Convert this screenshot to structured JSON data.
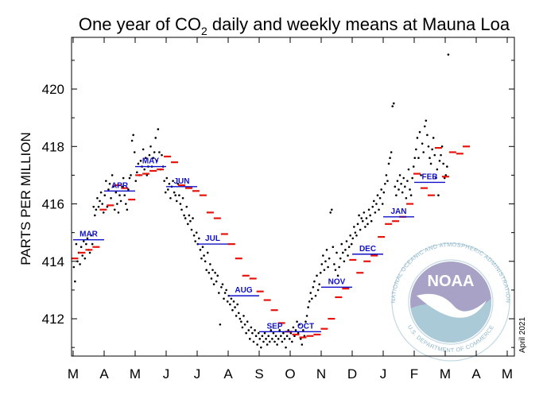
{
  "chart_data": {
    "type": "scatter",
    "title_prefix": "One year of CO",
    "title_subscript": "2",
    "title_suffix": " daily and weekly means at Mauna Loa",
    "xlabel": "",
    "ylabel": "PARTS PER MILLION",
    "ylim": [
      410.7,
      421.8
    ],
    "yticks": [
      412,
      414,
      416,
      418,
      420
    ],
    "xticks": [
      "M",
      "A",
      "M",
      "J",
      "J",
      "A",
      "S",
      "O",
      "N",
      "D",
      "J",
      "F",
      "M",
      "A",
      "M"
    ],
    "date_note": "April 2021",
    "grid": false,
    "monthly_means": [
      {
        "label": "MAR",
        "value": 414.75
      },
      {
        "label": "APR",
        "value": 416.45
      },
      {
        "label": "MAY",
        "value": 417.3
      },
      {
        "label": "JUN",
        "value": 416.6
      },
      {
        "label": "JUL",
        "value": 414.6
      },
      {
        "label": "AUG",
        "value": 412.8
      },
      {
        "label": "SEP",
        "value": 411.55
      },
      {
        "label": "OCT",
        "value": 411.55
      },
      {
        "label": "NOV",
        "value": 413.1
      },
      {
        "label": "DEC",
        "value": 414.25
      },
      {
        "label": "JAN",
        "value": 415.55
      },
      {
        "label": "FEB",
        "value": 416.75
      }
    ],
    "weekly_means_monthly_x": [
      0.05,
      0.28,
      0.51,
      0.74,
      0.97,
      1.2,
      1.43,
      1.66,
      1.89,
      2.12,
      2.35,
      2.58,
      2.81,
      3.04,
      3.27,
      3.5,
      3.73,
      3.96,
      4.19,
      4.42,
      4.65,
      4.88,
      5.11,
      5.34,
      5.57,
      5.8,
      6.03,
      6.26,
      6.49,
      6.72,
      6.95,
      7.18,
      7.41,
      7.64,
      7.87,
      8.1,
      8.33,
      8.56,
      8.79,
      9.02,
      9.25,
      9.48,
      9.71,
      9.94,
      10.17,
      10.4,
      10.63,
      10.86,
      11.09,
      11.32,
      11.55,
      11.78,
      12.01,
      12.24,
      12.47
    ],
    "weekly_means": [
      414.1,
      414.3,
      414.4,
      414.5,
      415.8,
      415.95,
      416.65,
      416.55,
      416.15,
      417.0,
      417.05,
      417.15,
      417.2,
      417.65,
      417.45,
      416.65,
      416.55,
      416.45,
      416.3,
      415.7,
      415.5,
      414.95,
      414.6,
      414.1,
      413.5,
      413.4,
      412.95,
      412.65,
      412.3,
      411.85,
      411.55,
      411.45,
      411.35,
      411.4,
      411.45,
      411.65,
      412.0,
      412.75,
      413.05,
      414.05,
      413.6,
      414.0,
      414.2,
      414.85,
      415.3,
      415.4,
      415.55,
      416.0,
      417.05,
      416.55,
      416.3,
      417.95,
      416.95,
      417.8,
      417.75
    ],
    "weekly_means_tail_x": [
      12.68
    ],
    "weekly_means_tail": [
      418.0
    ],
    "daily_means_monthly_x": [
      0.02,
      0.06,
      0.1,
      0.14,
      0.18,
      0.22,
      0.26,
      0.3,
      0.34,
      0.38,
      0.42,
      0.46,
      0.5,
      0.54,
      0.58,
      0.62,
      0.66,
      0.7,
      0.74,
      0.78,
      0.82,
      0.86,
      0.9,
      0.94,
      0.98,
      1.02,
      1.06,
      1.1,
      1.14,
      1.18,
      1.22,
      1.26,
      1.3,
      1.34,
      1.38,
      1.42,
      1.46,
      1.5,
      1.54,
      1.58,
      1.62,
      1.66,
      1.7,
      1.74,
      1.78,
      1.82,
      1.86,
      1.9,
      1.94,
      1.98,
      2.02,
      2.06,
      2.1,
      2.14,
      2.18,
      2.22,
      2.26,
      2.3,
      2.34,
      2.38,
      2.42,
      2.46,
      2.5,
      2.54,
      2.58,
      2.62,
      2.66,
      2.7,
      2.74,
      2.78,
      2.82,
      2.86,
      2.9,
      2.94,
      2.98,
      3.02,
      3.06,
      3.1,
      3.14,
      3.18,
      3.22,
      3.26,
      3.3,
      3.34,
      3.38,
      3.42,
      3.46,
      3.5,
      3.54,
      3.58,
      3.62,
      3.66,
      3.7,
      3.74,
      3.78,
      3.82,
      3.86,
      3.9,
      3.94,
      3.98,
      4.02,
      4.06,
      4.1,
      4.14,
      4.18,
      4.22,
      4.26,
      4.3,
      4.34,
      4.38,
      4.42,
      4.46,
      4.5,
      4.54,
      4.58,
      4.62,
      4.66,
      4.7,
      4.74,
      4.78,
      4.82,
      4.86,
      4.9,
      4.94,
      4.98,
      5.02,
      5.06,
      5.1,
      5.14,
      5.18,
      5.22,
      5.26,
      5.3,
      5.34,
      5.38,
      5.42,
      5.46,
      5.5,
      5.54,
      5.58,
      5.62,
      5.66,
      5.7,
      5.74,
      5.78,
      5.82,
      5.86,
      5.9,
      5.94,
      5.98,
      6.02,
      6.06,
      6.1,
      6.14,
      6.18,
      6.22,
      6.26,
      6.3,
      6.34,
      6.38,
      6.42,
      6.46,
      6.5,
      6.54,
      6.58,
      6.62,
      6.66,
      6.7,
      6.74,
      6.78,
      6.82,
      6.86,
      6.9,
      6.94,
      6.98,
      7.02,
      7.06,
      7.1,
      7.14,
      7.18,
      7.22,
      7.26,
      7.3,
      7.34,
      7.38,
      7.42,
      7.46,
      7.5,
      7.54,
      7.58,
      7.62,
      7.66,
      7.7,
      7.74,
      7.78,
      7.82,
      7.86,
      7.9,
      7.94,
      7.98,
      8.02,
      8.06,
      8.1,
      8.14,
      8.18,
      8.22,
      8.26,
      8.3,
      8.34,
      8.38,
      8.42,
      8.46,
      8.5,
      8.54,
      8.58,
      8.62,
      8.66,
      8.7,
      8.74,
      8.78,
      8.82,
      8.86,
      8.9,
      8.94,
      8.98,
      9.02,
      9.06,
      9.1,
      9.14,
      9.18,
      9.22,
      9.26,
      9.3,
      9.34,
      9.38,
      9.42,
      9.46,
      9.5,
      9.54,
      9.58,
      9.62,
      9.66,
      9.7,
      9.74,
      9.78,
      9.82,
      9.86,
      9.9,
      9.94,
      9.98,
      10.02,
      10.06,
      10.1,
      10.14,
      10.18,
      10.22,
      10.26,
      10.3,
      10.34,
      10.38,
      10.42,
      10.46,
      10.5,
      10.54,
      10.58,
      10.62,
      10.66,
      10.7,
      10.74,
      10.78,
      10.82,
      10.86,
      10.9,
      10.94,
      10.98,
      11.02,
      11.06,
      11.1,
      11.14,
      11.18,
      11.22,
      11.26,
      11.3,
      11.34,
      11.38,
      11.42,
      11.46,
      11.5,
      11.54,
      11.58,
      11.62,
      11.66,
      11.7,
      11.74,
      11.78,
      11.82,
      11.86,
      11.9,
      11.94,
      11.98,
      12.02,
      12.06,
      12.1,
      12.14,
      12.18,
      12.22,
      12.26,
      12.3,
      12.34,
      12.38,
      12.42,
      12.46,
      12.5,
      12.54,
      12.58,
      12.62,
      12.66,
      12.7,
      12.74
    ],
    "daily_means": [
      413.8,
      413.3,
      414.6,
      414.0,
      414.3,
      413.9,
      414.5,
      414.2,
      414.7,
      414.1,
      414.6,
      414.8,
      414.4,
      414.3,
      414.9,
      414.6,
      415.9,
      415.6,
      415.8,
      416.2,
      415.9,
      416.1,
      416.4,
      416.0,
      415.7,
      416.3,
      416.8,
      415.9,
      416.5,
      416.7,
      416.2,
      417.0,
      416.6,
      415.8,
      416.4,
      416.0,
      415.7,
      416.3,
      416.1,
      416.6,
      416.9,
      416.3,
      416.0,
      415.8,
      416.5,
      416.9,
      417.0,
      418.2,
      418.4,
      417.8,
      416.8,
      417.1,
      417.4,
      417.0,
      417.5,
      417.3,
      417.9,
      417.2,
      417.6,
      417.0,
      417.3,
      417.7,
      418.0,
      417.3,
      417.6,
      417.8,
      418.3,
      417.5,
      418.6,
      417.8,
      417.2,
      417.7,
      417.3,
      416.8,
      416.4,
      416.9,
      416.5,
      416.7,
      416.2,
      416.6,
      416.8,
      416.4,
      416.3,
      416.1,
      416.7,
      416.3,
      416.0,
      415.8,
      416.2,
      415.6,
      415.5,
      415.9,
      415.3,
      415.6,
      415.4,
      415.1,
      415.5,
      414.9,
      414.7,
      415.0,
      414.6,
      414.8,
      414.4,
      414.1,
      414.5,
      414.2,
      414.0,
      413.7,
      414.3,
      413.6,
      413.9,
      413.4,
      413.7,
      413.2,
      413.6,
      413.3,
      413.5,
      412.9,
      411.8,
      413.1,
      413.2,
      412.7,
      412.9,
      413.0,
      412.6,
      412.8,
      412.5,
      412.7,
      412.3,
      412.6,
      412.4,
      412.1,
      412.5,
      412.2,
      412.0,
      411.9,
      411.7,
      412.1,
      411.8,
      411.5,
      411.9,
      411.6,
      411.3,
      411.7,
      411.5,
      411.2,
      411.6,
      411.4,
      411.1,
      411.5,
      411.3,
      411.0,
      411.4,
      411.2,
      411.5,
      411.3,
      411.1,
      411.4,
      411.2,
      411.6,
      411.3,
      411.5,
      411.2,
      411.4,
      411.1,
      411.3,
      411.6,
      411.4,
      411.2,
      411.5,
      411.3,
      411.0,
      411.4,
      411.6,
      411.3,
      411.5,
      411.2,
      411.7,
      411.4,
      411.6,
      411.9,
      411.5,
      411.8,
      411.3,
      411.1,
      411.6,
      411.4,
      411.9,
      412.1,
      412.4,
      412.6,
      412.9,
      412.7,
      413.1,
      413.3,
      412.8,
      413.5,
      413.0,
      413.2,
      413.6,
      413.9,
      414.2,
      413.7,
      414.0,
      414.4,
      413.8,
      414.1,
      415.7,
      415.8,
      414.5,
      413.9,
      413.7,
      414.3,
      413.5,
      413.8,
      414.1,
      414.6,
      414.3,
      414.0,
      414.4,
      414.7,
      414.2,
      414.5,
      414.9,
      414.6,
      414.8,
      415.2,
      415.0,
      414.9,
      415.3,
      415.6,
      415.1,
      415.5,
      415.4,
      415.7,
      415.2,
      415.5,
      415.3,
      415.8,
      415.6,
      415.4,
      415.9,
      416.1,
      415.7,
      416.0,
      416.3,
      415.8,
      416.2,
      416.5,
      416.0,
      416.4,
      416.7,
      417.0,
      416.8,
      417.4,
      417.6,
      417.8,
      419.4,
      419.5,
      416.6,
      416.3,
      416.8,
      416.5,
      417.0,
      416.7,
      416.4,
      416.9,
      416.6,
      416.2,
      416.8,
      417.2,
      416.5,
      416.3,
      416.9,
      417.3,
      417.6,
      417.9,
      418.3,
      417.6,
      418.5,
      417.0,
      418.1,
      417.8,
      418.7,
      418.9,
      418.4,
      418.0,
      417.6,
      417.4,
      417.9,
      418.3,
      417.7,
      416.9,
      417.2,
      416.3,
      417.5,
      417.7,
      418.0,
      417.4,
      416.9,
      417.0,
      417.3,
      421.2
    ],
    "legend": []
  },
  "branding": {
    "logo_name": "NOAA",
    "logo_ring_top": "NATIONAL OCEANIC AND ATMOSPHERIC ADMINISTRATION",
    "logo_ring_bottom": "U.S. DEPARTMENT OF COMMERCE"
  },
  "colors": {
    "daily": "#000000",
    "weekly": "#e8140c",
    "monthly": "#1010c8",
    "logo_ring": "#8fb7c8",
    "logo_top": "#a7a2c6",
    "logo_bottom": "#a9cad6"
  }
}
